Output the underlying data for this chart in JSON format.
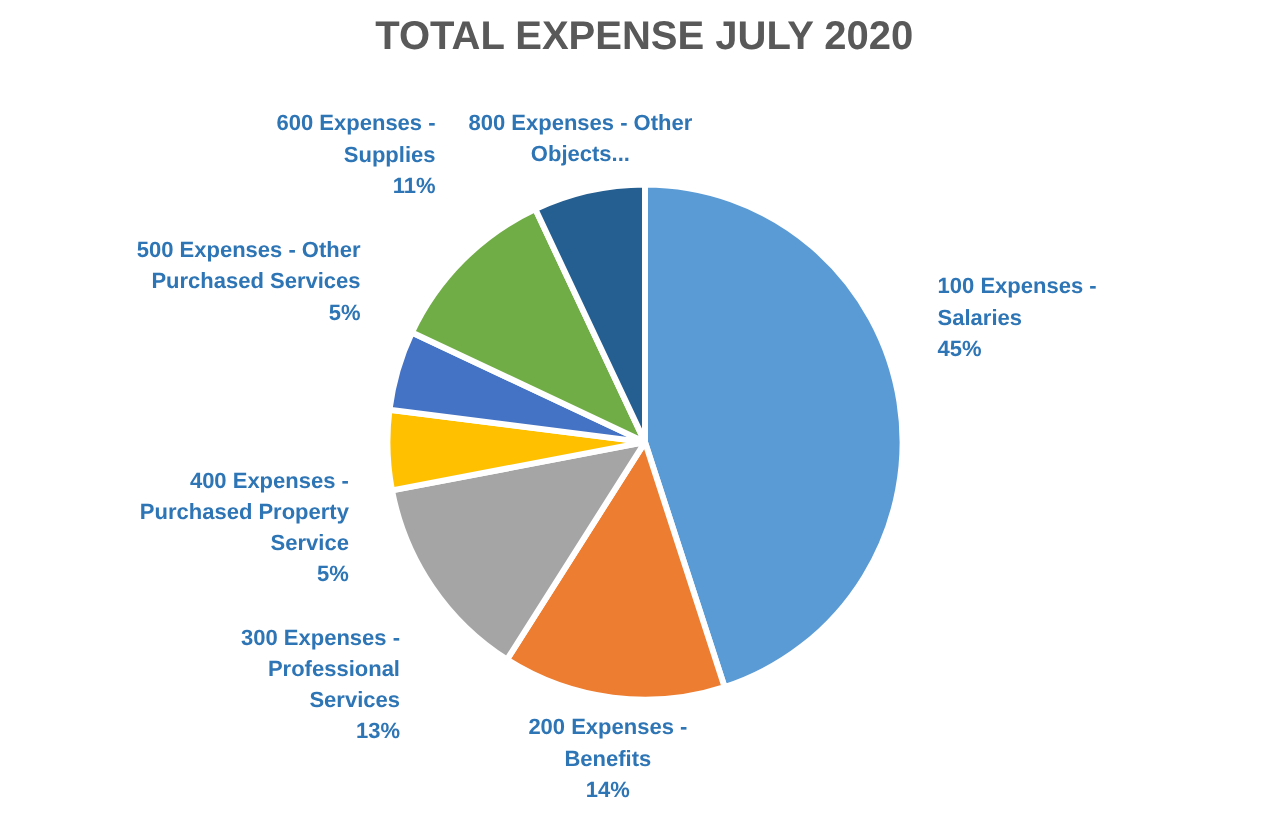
{
  "chart_data": {
    "type": "pie",
    "title": "TOTAL EXPENSE JULY 2020",
    "categories": [
      "100 Expenses - Salaries",
      "200 Expenses - Benefits",
      "300 Expenses - Professional Services",
      "400 Expenses - Purchased Property Service",
      "500 Expenses - Other Purchased Services",
      "600 Expenses - Supplies",
      "800 Expenses - Other Objects..."
    ],
    "values": [
      45,
      14,
      13,
      5,
      5,
      11,
      7
    ],
    "colors": [
      "#5b9bd5",
      "#ed7d31",
      "#a5a5a5",
      "#ffc000",
      "#4472c4",
      "#70ad47",
      "#255e91"
    ],
    "value_labels": [
      "45%",
      "14%",
      "13%",
      "5%",
      "5%",
      "11%",
      null
    ],
    "legend": false
  }
}
